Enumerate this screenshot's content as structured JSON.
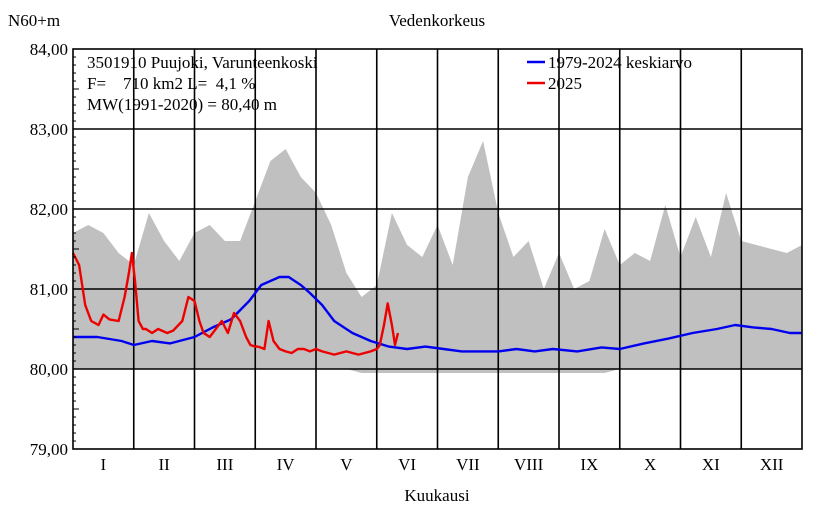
{
  "chart_data": {
    "type": "line",
    "title": "Vedenkorkeus",
    "ylabel": "N60+m",
    "xlabel": "Kuukausi",
    "ylim": [
      79.0,
      84.0
    ],
    "yticks": [
      79.0,
      80.0,
      81.0,
      82.0,
      83.0,
      84.0
    ],
    "ytick_labels": [
      "79,00",
      "80,00",
      "81,00",
      "82,00",
      "83,00",
      "84,00"
    ],
    "xlim": [
      0,
      12
    ],
    "categories": [
      "I",
      "II",
      "III",
      "IV",
      "V",
      "VI",
      "VII",
      "VIII",
      "IX",
      "X",
      "XI",
      "XII"
    ],
    "grid": true,
    "info_lines": [
      "3501910 Puujoki, Varunteenkoski",
      "F=    710 km2 L=  4,1 %",
      "MW(1991-2020) = 80,40 m"
    ],
    "legend": {
      "placement": "top-right"
    },
    "colors": {
      "mean": "#0000ee",
      "current": "#ee0000",
      "range": "#c0c0c0"
    },
    "range_band": {
      "x": [
        0,
        0.25,
        0.5,
        0.75,
        1.0,
        1.25,
        1.5,
        1.75,
        2.0,
        2.25,
        2.5,
        2.75,
        3.0,
        3.25,
        3.5,
        3.75,
        4.0,
        4.25,
        4.5,
        4.75,
        5.0,
        5.25,
        5.5,
        5.75,
        6.0,
        6.25,
        6.5,
        6.75,
        7.0,
        7.25,
        7.5,
        7.75,
        8.0,
        8.25,
        8.5,
        8.75,
        9.0,
        9.25,
        9.5,
        9.75,
        10.0,
        10.25,
        10.5,
        10.75,
        11.0,
        11.25,
        11.5,
        11.75,
        12.0
      ],
      "max": [
        81.7,
        81.8,
        81.7,
        81.45,
        81.3,
        81.95,
        81.6,
        81.35,
        81.7,
        81.8,
        81.6,
        81.6,
        82.1,
        82.6,
        82.75,
        82.4,
        82.2,
        81.8,
        81.2,
        80.9,
        81.05,
        81.95,
        81.55,
        81.4,
        81.8,
        81.3,
        82.4,
        82.85,
        81.95,
        81.4,
        81.6,
        81.0,
        81.45,
        81.0,
        81.1,
        81.75,
        81.3,
        81.45,
        81.35,
        82.05,
        81.4,
        81.9,
        81.4,
        82.2,
        81.6,
        81.55,
        81.5,
        81.45,
        81.55
      ],
      "min": [
        80.0,
        80.0,
        80.0,
        80.0,
        80.0,
        80.0,
        80.0,
        80.0,
        80.0,
        80.0,
        80.0,
        80.0,
        80.0,
        80.0,
        80.0,
        80.0,
        80.0,
        80.0,
        80.0,
        79.95,
        79.95,
        79.95,
        79.95,
        79.95,
        79.95,
        79.95,
        79.95,
        79.95,
        79.95,
        79.95,
        79.95,
        79.95,
        79.95,
        79.95,
        79.95,
        79.95,
        80.0,
        80.0,
        80.0,
        80.0,
        80.0,
        80.0,
        80.0,
        80.0,
        80.0,
        80.0,
        80.0,
        80.0,
        80.0
      ]
    },
    "series": [
      {
        "name": "1979-2024 keskiarvo",
        "key": "mean",
        "x": [
          0,
          0.4,
          0.8,
          1.0,
          1.3,
          1.6,
          2.0,
          2.3,
          2.6,
          2.9,
          3.1,
          3.25,
          3.4,
          3.55,
          3.65,
          3.75,
          3.9,
          4.1,
          4.3,
          4.6,
          4.9,
          5.2,
          5.5,
          5.8,
          6.1,
          6.4,
          6.7,
          7.0,
          7.3,
          7.6,
          7.9,
          8.3,
          8.7,
          9.0,
          9.4,
          9.8,
          10.2,
          10.6,
          10.9,
          11.2,
          11.5,
          11.8,
          12.0
        ],
        "y": [
          80.4,
          80.4,
          80.35,
          80.3,
          80.35,
          80.32,
          80.4,
          80.52,
          80.62,
          80.85,
          81.05,
          81.1,
          81.15,
          81.15,
          81.1,
          81.05,
          80.95,
          80.8,
          80.6,
          80.45,
          80.35,
          80.28,
          80.25,
          80.28,
          80.25,
          80.22,
          80.22,
          80.22,
          80.25,
          80.22,
          80.25,
          80.22,
          80.27,
          80.25,
          80.32,
          80.38,
          80.45,
          80.5,
          80.55,
          80.52,
          80.5,
          80.45,
          80.45
        ]
      },
      {
        "name": "2025",
        "key": "current",
        "segments": [
          {
            "x": [
              0,
              0.1,
              0.2,
              0.3,
              0.42,
              0.5,
              0.6,
              0.75,
              0.85,
              0.92,
              0.97,
              1.02,
              1.08,
              1.15,
              1.2,
              1.3,
              1.4,
              1.55,
              1.65,
              1.8,
              1.9,
              2.0,
              2.08,
              2.15,
              2.25,
              2.35,
              2.45,
              2.55,
              2.65,
              2.75,
              2.85,
              2.92,
              3.0,
              3.05
            ],
            "y": [
              81.45,
              81.3,
              80.8,
              80.6,
              80.55,
              80.68,
              80.62,
              80.6,
              80.9,
              81.2,
              81.45,
              81.1,
              80.6,
              80.5,
              80.5,
              80.45,
              80.5,
              80.45,
              80.48,
              80.6,
              80.9,
              80.85,
              80.6,
              80.45,
              80.4,
              80.5,
              80.6,
              80.45,
              80.7,
              80.6,
              80.4,
              80.3,
              80.28,
              80.28
            ]
          },
          {
            "x": [
              3.05,
              3.15,
              3.22,
              3.3,
              3.4,
              3.5,
              3.6,
              3.7,
              3.8,
              3.9,
              4.0,
              4.1,
              4.2,
              4.3,
              4.4,
              4.5,
              4.6,
              4.7,
              4.8,
              4.9,
              5.0,
              5.05,
              5.12,
              5.18,
              5.25,
              5.3,
              5.35
            ],
            "y": [
              80.28,
              80.25,
              80.6,
              80.35,
              80.25,
              80.22,
              80.2,
              80.25,
              80.25,
              80.22,
              80.25,
              80.22,
              80.2,
              80.18,
              80.2,
              80.22,
              80.2,
              80.18,
              80.2,
              80.22,
              80.25,
              80.3,
              80.55,
              80.82,
              80.55,
              80.3,
              80.45
            ]
          }
        ]
      }
    ]
  }
}
